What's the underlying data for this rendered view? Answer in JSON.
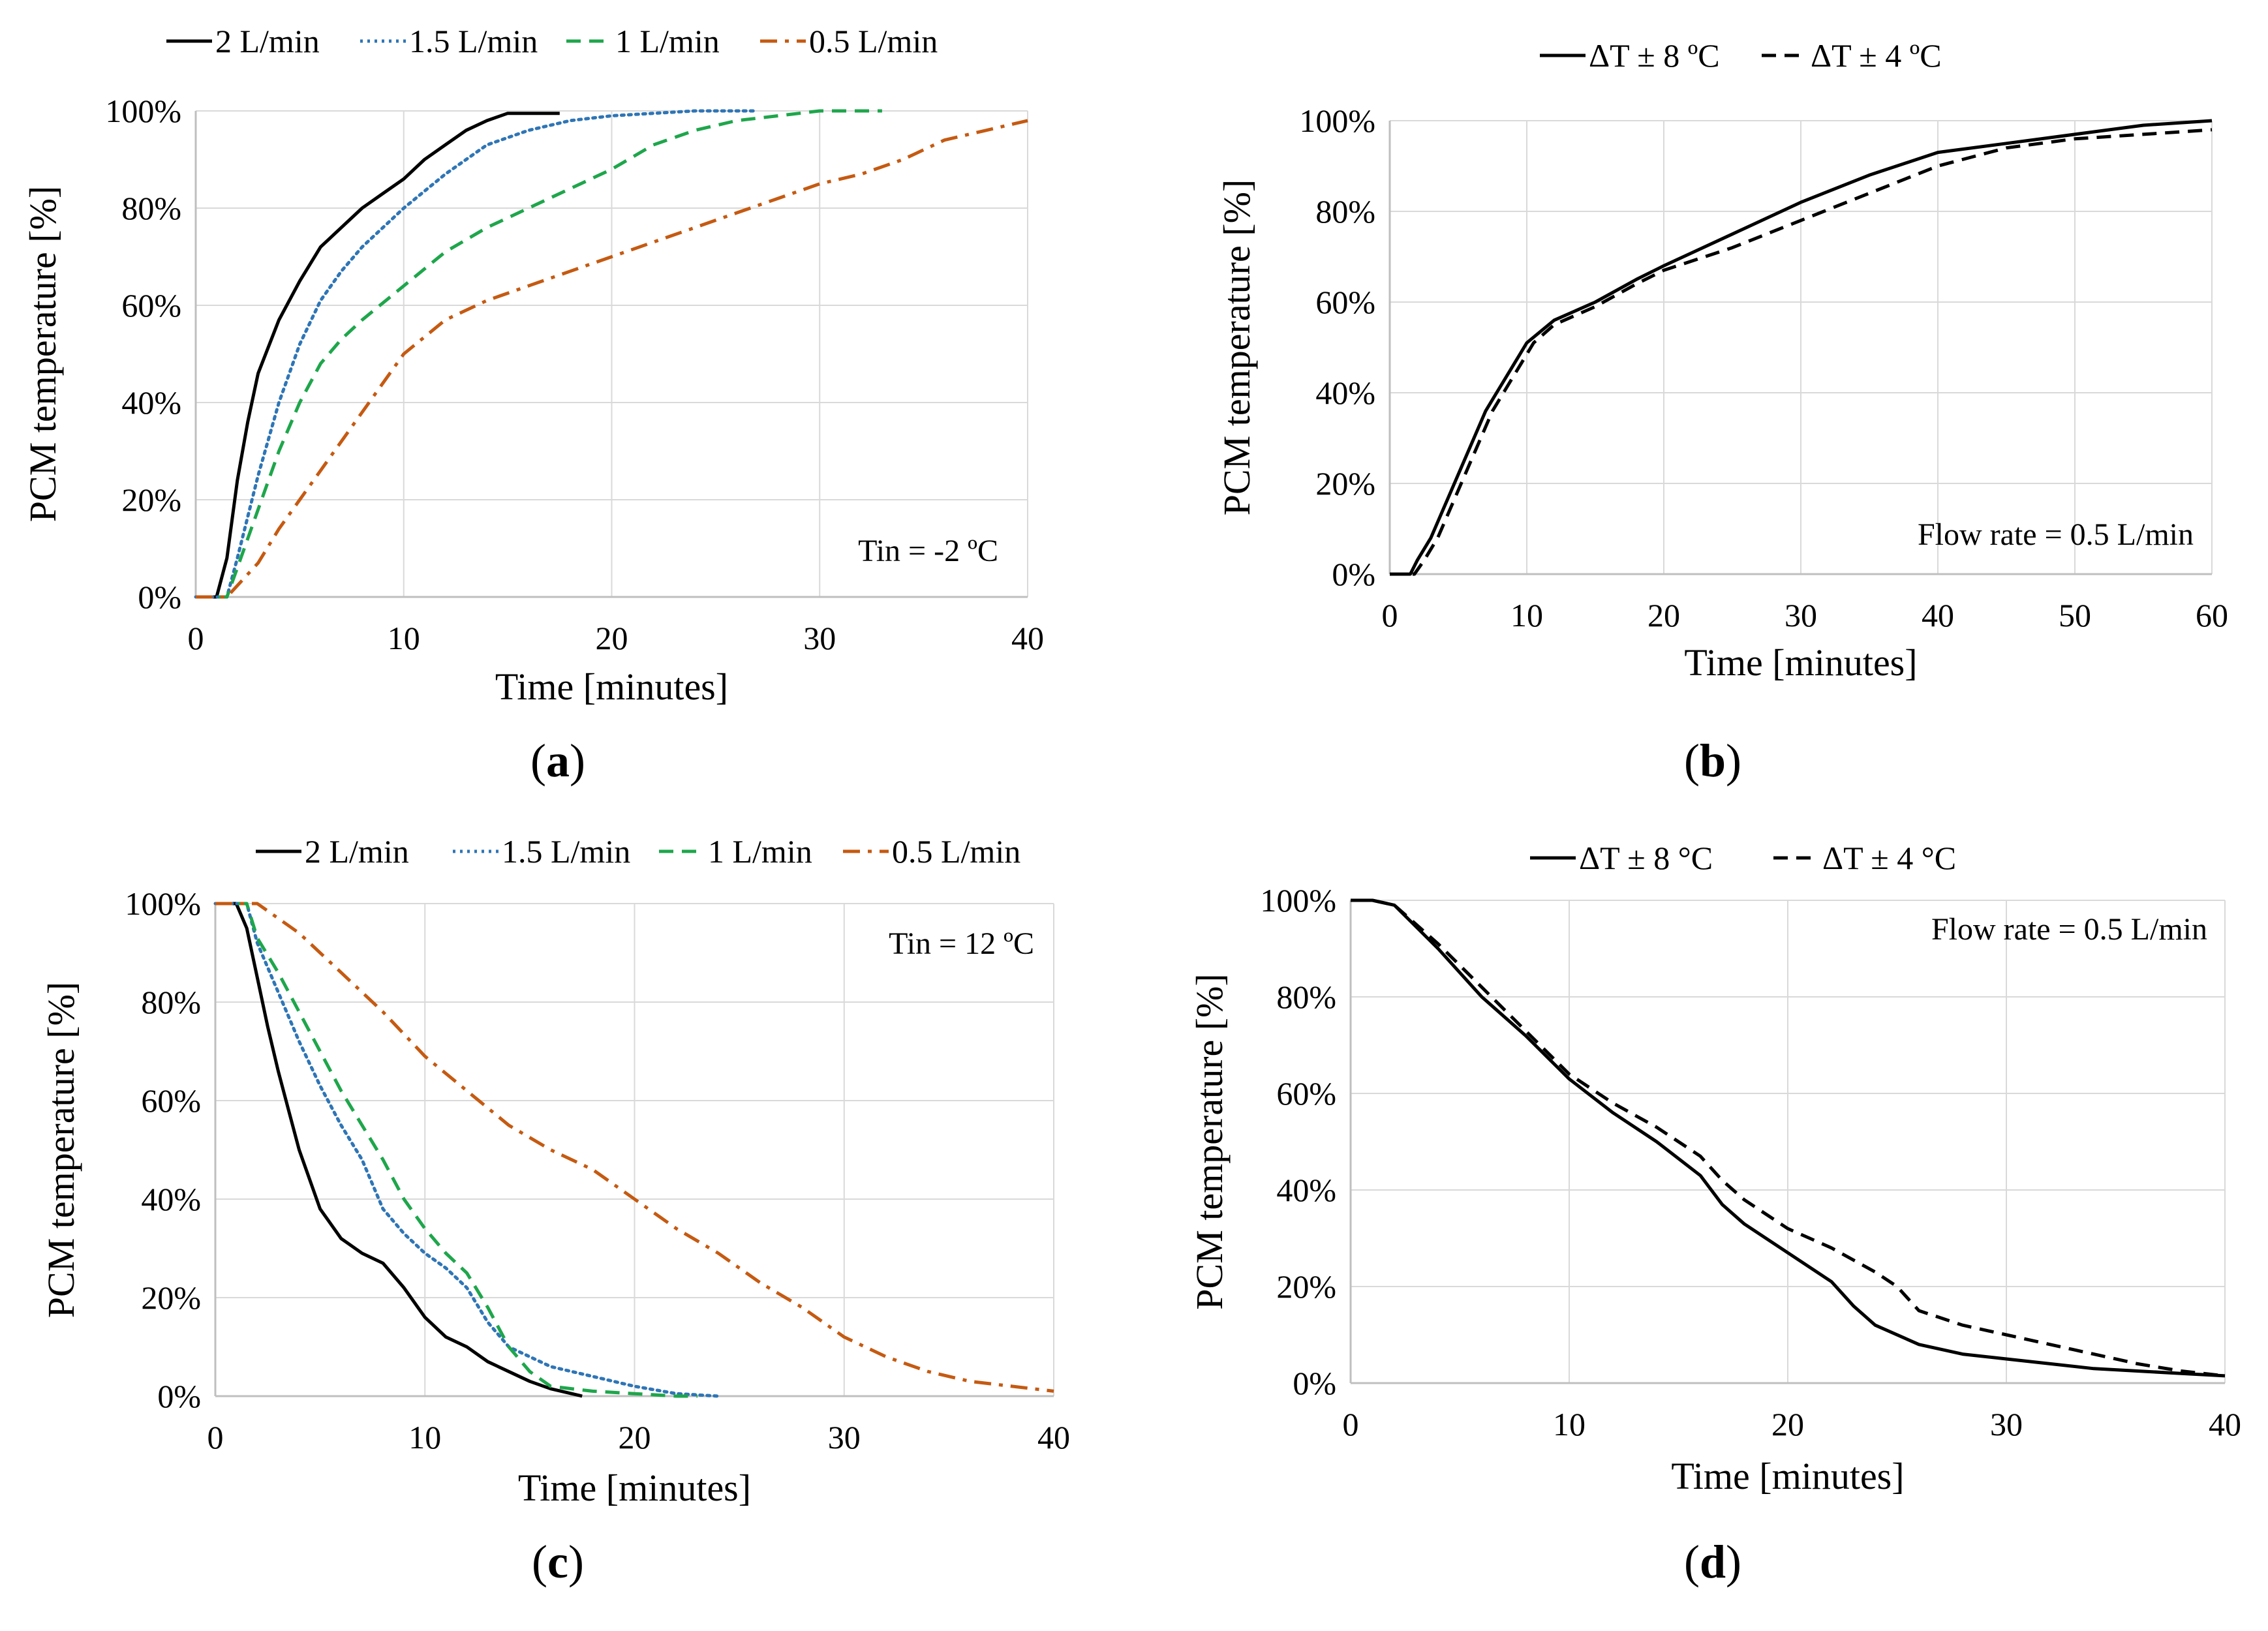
{
  "chart_data": [
    {
      "panel": "a",
      "type": "line",
      "xlabel": "Time [minutes]",
      "ylabel": "PCM temperature  [%]",
      "xlim": [
        0,
        40
      ],
      "ylim": [
        0,
        100
      ],
      "x_ticks": [
        "0",
        "10",
        "20",
        "30",
        "40"
      ],
      "y_ticks": [
        "0%",
        "20%",
        "40%",
        "60%",
        "80%",
        "100%"
      ],
      "annotation": "Tin = -2 ºC",
      "panel_label": {
        "open": "(",
        "letter": "a",
        "close": ")"
      },
      "legend_position": "top",
      "series": [
        {
          "name": "2 L/min",
          "color": "#000000",
          "dash": "solid",
          "x": [
            0,
            1,
            1.5,
            2,
            2.5,
            3,
            4,
            5,
            6,
            7,
            8,
            9,
            10,
            11,
            12,
            13,
            14,
            15,
            16,
            17.5
          ],
          "y": [
            0,
            0,
            8,
            24,
            36,
            46,
            57,
            65,
            72,
            76,
            80,
            83,
            86,
            90,
            93,
            96,
            98,
            99.5,
            99.5,
            99.5
          ]
        },
        {
          "name": "1.5 L/min",
          "color": "#2e75b6",
          "dash": "dot",
          "x": [
            0,
            1.5,
            2,
            3,
            4,
            5,
            6,
            7,
            8,
            10,
            12,
            14,
            16,
            18,
            20,
            22,
            24,
            27
          ],
          "y": [
            0,
            0,
            8,
            25,
            40,
            52,
            61,
            67,
            72,
            80,
            87,
            93,
            96,
            98,
            99,
            99.5,
            100,
            100
          ]
        },
        {
          "name": "1 L/min",
          "color": "#1ea64b",
          "dash": "dash",
          "x": [
            0,
            1.5,
            2,
            3,
            4,
            5,
            6,
            7,
            8,
            10,
            12,
            14,
            16,
            18,
            20,
            22,
            24,
            26,
            28,
            30,
            33
          ],
          "y": [
            0,
            0,
            6,
            18,
            30,
            40,
            48,
            53,
            57,
            64,
            71,
            76,
            80,
            84,
            88,
            93,
            96,
            98,
            99,
            100,
            100
          ]
        },
        {
          "name": "0.5 L/min",
          "color": "#c55a11",
          "dash": "dashdot",
          "x": [
            0,
            1.5,
            3,
            4,
            5,
            6,
            8,
            10,
            12,
            14,
            16,
            18,
            20,
            22,
            24,
            26,
            28,
            30,
            32,
            34,
            36,
            38,
            40
          ],
          "y": [
            0,
            0,
            7,
            14,
            20,
            26,
            38,
            50,
            57,
            61,
            64,
            67,
            70,
            73,
            76,
            79,
            82,
            85,
            87,
            90,
            94,
            96,
            98
          ]
        }
      ]
    },
    {
      "panel": "b",
      "type": "line",
      "xlabel": "Time [minutes]",
      "ylabel": "PCM temperature  [%]",
      "xlim": [
        0,
        60
      ],
      "ylim": [
        0,
        100
      ],
      "x_ticks": [
        "0",
        "10",
        "20",
        "30",
        "40",
        "50",
        "60"
      ],
      "y_ticks": [
        "0%",
        "20%",
        "40%",
        "60%",
        "80%",
        "100%"
      ],
      "annotation": "Flow rate = 0.5 L/min",
      "panel_label": {
        "open": "(",
        "letter": "b",
        "close": ")"
      },
      "legend_position": "top",
      "series": [
        {
          "name": "ΔT ± 8 ºC",
          "color": "#000000",
          "dash": "solid",
          "x": [
            0,
            1.5,
            2,
            3,
            4,
            5,
            6,
            7,
            8,
            9,
            10,
            12,
            15,
            18,
            20,
            25,
            30,
            35,
            40,
            45,
            50,
            55,
            60
          ],
          "y": [
            0,
            0,
            3,
            8,
            15,
            22,
            29,
            36,
            41,
            46,
            51,
            56,
            60,
            65,
            68,
            75,
            82,
            88,
            93,
            95,
            97,
            99,
            100
          ]
        },
        {
          "name": "ΔT ± 4 ºC",
          "color": "#000000",
          "dash": "dash",
          "x": [
            0,
            1.8,
            2.5,
            3.5,
            4.5,
            5.5,
            6.5,
            7.5,
            8.5,
            9.5,
            10.5,
            12,
            15,
            18,
            20,
            25,
            30,
            35,
            40,
            45,
            50,
            55,
            60
          ],
          "y": [
            0,
            0,
            3,
            8,
            15,
            22,
            29,
            36,
            41,
            46,
            51,
            55,
            59,
            64,
            67,
            72,
            78,
            84,
            90,
            94,
            96,
            97,
            98
          ]
        }
      ]
    },
    {
      "panel": "c",
      "type": "line",
      "xlabel": "Time [minutes]",
      "ylabel": "PCM temperature  [%]",
      "xlim": [
        0,
        40
      ],
      "ylim": [
        0,
        100
      ],
      "x_ticks": [
        "0",
        "10",
        "20",
        "30",
        "40"
      ],
      "y_ticks": [
        "0%",
        "20%",
        "40%",
        "60%",
        "80%",
        "100%"
      ],
      "annotation": "Tin = 12 ºC",
      "panel_label": {
        "open": "(",
        "letter": "c",
        "close": ")"
      },
      "legend_position": "top",
      "series": [
        {
          "name": "2 L/min",
          "color": "#000000",
          "dash": "solid",
          "x": [
            0,
            1,
            1.5,
            2,
            2.5,
            3,
            3.5,
            4,
            5,
            6,
            7,
            8,
            9,
            10,
            11,
            12,
            13,
            14,
            15,
            16,
            17,
            17.5
          ],
          "y": [
            100,
            100,
            95,
            85,
            75,
            66,
            58,
            50,
            38,
            32,
            29,
            27,
            22,
            16,
            12,
            10,
            7,
            5,
            3,
            1.5,
            0.5,
            0
          ]
        },
        {
          "name": "1.5 L/min",
          "color": "#2e75b6",
          "dash": "dot",
          "x": [
            0,
            1.5,
            2,
            3,
            4,
            5,
            6,
            7,
            8,
            9,
            10,
            11,
            12,
            13,
            14,
            15,
            16,
            18,
            20,
            22,
            24
          ],
          "y": [
            100,
            100,
            92,
            82,
            72,
            63,
            55,
            48,
            38,
            33,
            29,
            26,
            22,
            15,
            10,
            8,
            6,
            4,
            2,
            0.5,
            0
          ]
        },
        {
          "name": "1 L/min",
          "color": "#1ea64b",
          "dash": "dash",
          "x": [
            0,
            1.5,
            2,
            3,
            4,
            5,
            6,
            7,
            8,
            9,
            10,
            11,
            12,
            13,
            14,
            15,
            16,
            18,
            20,
            22,
            23
          ],
          "y": [
            100,
            100,
            93,
            86,
            78,
            70,
            62,
            55,
            48,
            40,
            34,
            29,
            25,
            18,
            10,
            5,
            2,
            1,
            0.5,
            0,
            0
          ]
        },
        {
          "name": "0.5 L/min",
          "color": "#c55a11",
          "dash": "dashdot",
          "x": [
            0,
            2,
            4,
            6,
            8,
            10,
            12,
            14,
            16,
            18,
            20,
            22,
            24,
            26,
            28,
            30,
            32,
            34,
            36,
            38,
            40
          ],
          "y": [
            100,
            100,
            94,
            86,
            78,
            69,
            62,
            55,
            50,
            46,
            40,
            34,
            29,
            23,
            18,
            12,
            8,
            5,
            3,
            2,
            1
          ]
        }
      ]
    },
    {
      "panel": "d",
      "type": "line",
      "xlabel": "Time [minutes]",
      "ylabel": "PCM temperature  [%]",
      "xlim": [
        0,
        40
      ],
      "ylim": [
        0,
        100
      ],
      "x_ticks": [
        "0",
        "10",
        "20",
        "30",
        "40"
      ],
      "y_ticks": [
        "0%",
        "20%",
        "40%",
        "60%",
        "80%",
        "100%"
      ],
      "annotation": "Flow rate = 0.5 L/min",
      "panel_label": {
        "open": "(",
        "letter": "d",
        "close": ")"
      },
      "legend_position": "top",
      "series": [
        {
          "name": "ΔT ± 8 °C",
          "color": "#000000",
          "dash": "solid",
          "x": [
            0,
            1,
            2,
            4,
            6,
            8,
            10,
            12,
            14,
            16,
            17,
            18,
            20,
            22,
            23,
            24,
            26,
            28,
            30,
            32,
            34,
            36,
            38,
            40
          ],
          "y": [
            100,
            100,
            99,
            90,
            80,
            72,
            63,
            56,
            50,
            43,
            37,
            33,
            27,
            21,
            16,
            12,
            8,
            6,
            5,
            4,
            3,
            2.5,
            2,
            1.5
          ]
        },
        {
          "name": "ΔT ± 4 °C",
          "color": "#000000",
          "dash": "dash",
          "x": [
            0,
            1,
            2,
            4,
            6,
            8,
            10,
            12,
            14,
            16,
            17,
            18,
            20,
            22,
            24,
            25,
            26,
            28,
            30,
            32,
            34,
            36,
            38,
            40
          ],
          "y": [
            100,
            100,
            99,
            91,
            82,
            73,
            64,
            58,
            53,
            47,
            42,
            38,
            32,
            28,
            23,
            20,
            15,
            12,
            10,
            8,
            6,
            4,
            2.5,
            1.5
          ]
        }
      ]
    }
  ]
}
